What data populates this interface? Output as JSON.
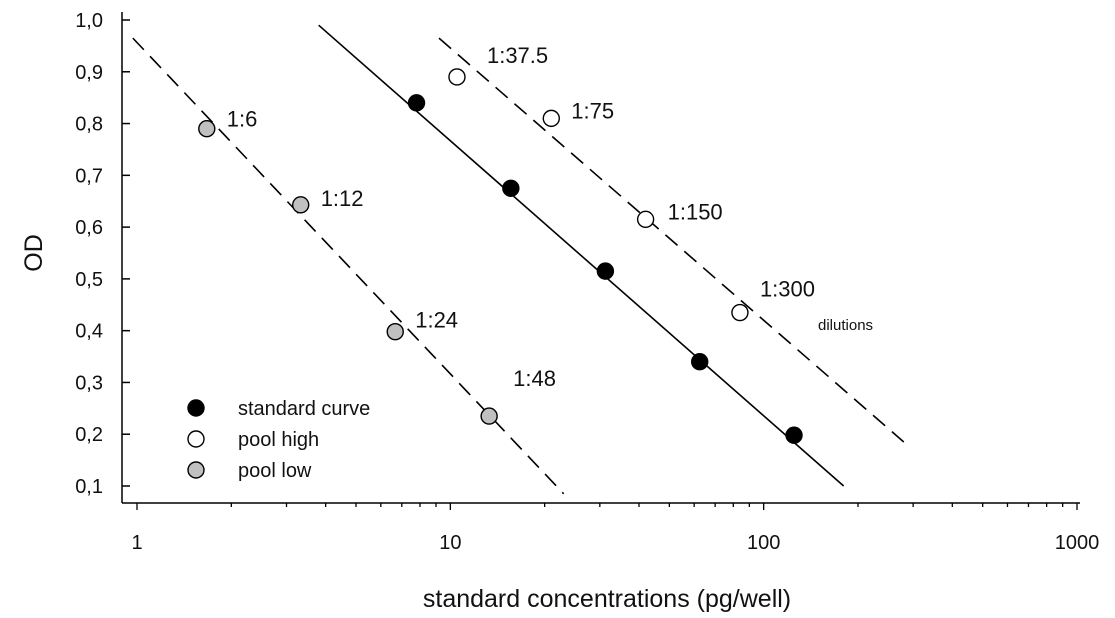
{
  "chart_data": {
    "type": "scatter",
    "xlabel": "standard concentrations (pg/well)",
    "ylabel": "OD",
    "xscale": "log",
    "xlim": [
      0.9,
      1000
    ],
    "ylim": [
      0.1,
      1.0
    ],
    "x_ticks": [
      1,
      10,
      100,
      1000
    ],
    "x_tick_labels": [
      "1",
      "10",
      "100",
      "1000"
    ],
    "y_ticks": [
      0.1,
      0.2,
      0.3,
      0.4,
      0.5,
      0.6,
      0.7,
      0.8,
      0.9,
      1.0
    ],
    "y_tick_labels": [
      "0,1",
      "0,2",
      "0,3",
      "0,4",
      "0,5",
      "0,6",
      "0,7",
      "0,8",
      "0,9",
      "1,0"
    ],
    "grid": false,
    "legend_position": "bottom-left",
    "series": [
      {
        "name": "standard curve",
        "marker_fill": "#000000",
        "line_style": "solid",
        "x": [
          7.8,
          15.6,
          31.25,
          62.5,
          125
        ],
        "y": [
          0.84,
          0.675,
          0.515,
          0.34,
          0.198
        ],
        "labels": [],
        "fit_line": {
          "x": [
            3.8,
            180
          ],
          "y": [
            0.99,
            0.1
          ]
        }
      },
      {
        "name": "pool high",
        "marker_fill": "#ffffff",
        "line_style": "dashed",
        "x": [
          10.5,
          21,
          42,
          84
        ],
        "y": [
          0.89,
          0.81,
          0.615,
          0.435
        ],
        "labels": [
          "1:37.5",
          "1:75",
          "1:150",
          "1:300"
        ],
        "fit_line": {
          "x": [
            9.2,
            280
          ],
          "y": [
            0.965,
            0.185
          ]
        }
      },
      {
        "name": "pool low",
        "marker_fill": "#c0c0c0",
        "line_style": "dashed",
        "x": [
          1.67,
          3.33,
          6.67,
          13.3
        ],
        "y": [
          0.79,
          0.643,
          0.398,
          0.235
        ],
        "labels": [
          "1:6",
          "1:12",
          "1:24",
          "1:48"
        ],
        "fit_line": {
          "x": [
            0.97,
            23
          ],
          "y": [
            0.965,
            0.085
          ]
        }
      }
    ],
    "annotations": [
      {
        "text": "dilutions",
        "near": "1:300"
      }
    ]
  }
}
